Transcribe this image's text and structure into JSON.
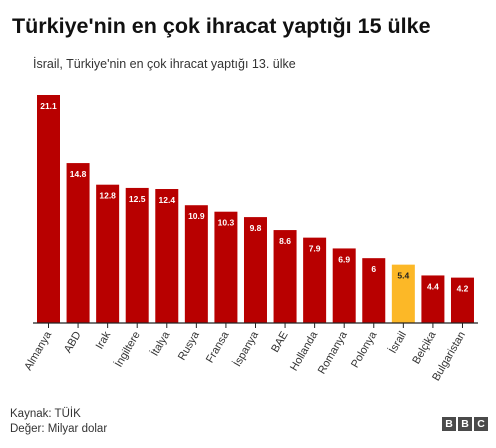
{
  "chart_data": {
    "type": "bar",
    "title": "Türkiye'nin en çok ihracat yaptığı 15 ülke",
    "subtitle": "İsrail, Türkiye'nin en çok ihracat yaptığı 13. ülke",
    "categories": [
      "Almanya",
      "ABD",
      "Irak",
      "İngiltere",
      "İtalya",
      "Rusya",
      "Fransa",
      "İspanya",
      "BAE",
      "Hollanda",
      "Romanya",
      "Polonya",
      "İsrail",
      "Belçika",
      "Bulgaristan"
    ],
    "values": [
      21.1,
      14.8,
      12.8,
      12.5,
      12.4,
      10.9,
      10.3,
      9.8,
      8.6,
      7.9,
      6.9,
      6,
      5.4,
      4.4,
      4.2
    ],
    "value_labels": [
      "21.1",
      "14.8",
      "12.8",
      "12.5",
      "12.4",
      "10.9",
      "10.3",
      "9.8",
      "8.6",
      "7.9",
      "6.9",
      "6",
      "5.4",
      "4.4",
      "4.2"
    ],
    "highlight_category": "İsrail",
    "ylim": [
      0,
      21.1
    ],
    "grid": false,
    "xlabel": "",
    "ylabel": ""
  },
  "footer": {
    "source": "Kaynak: TÜİK",
    "unit": "Değer: Milyar dolar",
    "logo_letters": [
      "B",
      "B",
      "C"
    ]
  },
  "colors": {
    "bar": "#b80000",
    "highlight": "#fcb827",
    "axis": "#222222",
    "label_on_bar": "#ffffff",
    "label_on_highlight": "#222222"
  }
}
